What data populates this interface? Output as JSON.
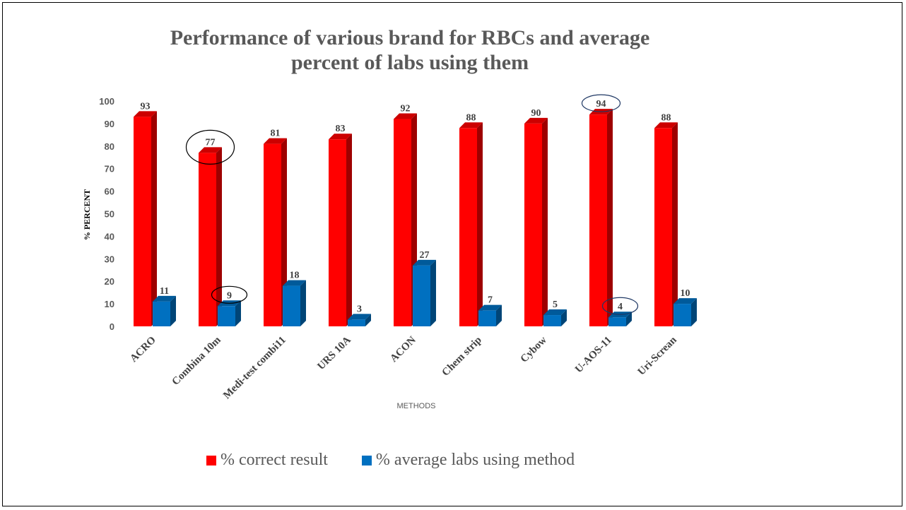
{
  "chart_data": {
    "type": "bar",
    "title": "Performance of various brand for RBCs and average percent of labs using them",
    "title_lines": [
      "Performance of various brand for RBCs and average",
      "percent of labs using them"
    ],
    "xlabel": "METHODS",
    "ylabel": "% PERCENT",
    "ylim": [
      0,
      100
    ],
    "yticks": [
      0,
      10,
      20,
      30,
      40,
      50,
      60,
      70,
      80,
      90,
      100
    ],
    "categories": [
      "ACRO",
      "Combina 10m",
      "Medi-test combi11",
      "URS 10A",
      "ACON",
      "Chem strip",
      "Cybow",
      "U-AOS-11",
      "Uri-Screan"
    ],
    "series": [
      {
        "name": "% correct result",
        "color": "#ff0000",
        "values": [
          93,
          77,
          81,
          83,
          92,
          88,
          90,
          94,
          88
        ]
      },
      {
        "name": "% average labs using method",
        "color": "#0070c0",
        "values": [
          11,
          9,
          18,
          3,
          27,
          7,
          5,
          4,
          10
        ]
      }
    ],
    "grid": false,
    "legend_position": "bottom",
    "annotations": [
      {
        "type": "circle",
        "category": "Combina 10m",
        "series": "% correct result"
      },
      {
        "type": "circle",
        "category": "Combina 10m",
        "series": "% average labs using method"
      },
      {
        "type": "circle",
        "category": "U-AOS-11",
        "series": "% correct result"
      },
      {
        "type": "circle",
        "category": "U-AOS-11",
        "series": "% average labs using method"
      }
    ]
  }
}
